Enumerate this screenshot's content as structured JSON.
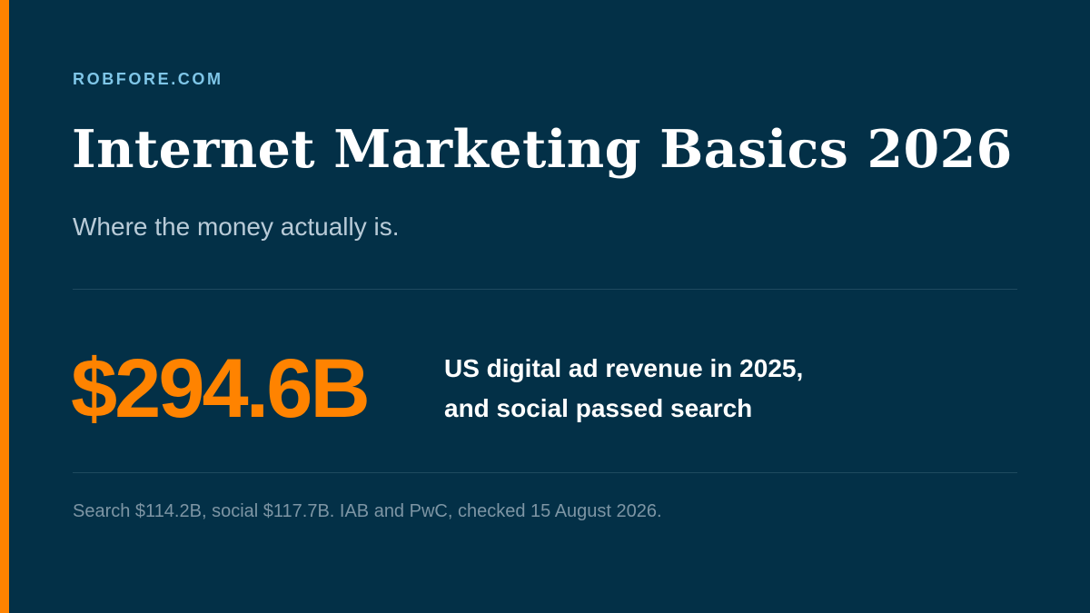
{
  "site": "ROBFORE.COM",
  "title": "Internet Marketing Basics 2026",
  "subtitle": "Where the money actually is.",
  "highlight": {
    "value": "$294.6B",
    "caption_line1": "US digital ad revenue in 2025,",
    "caption_line2": "and social passed search"
  },
  "source_note": "Search $114.2B, social $117.7B. IAB and PwC, checked 15 August 2026.",
  "colors": {
    "background": "#033047",
    "accent": "#ff8300",
    "site_label": "#7fc6e8"
  }
}
